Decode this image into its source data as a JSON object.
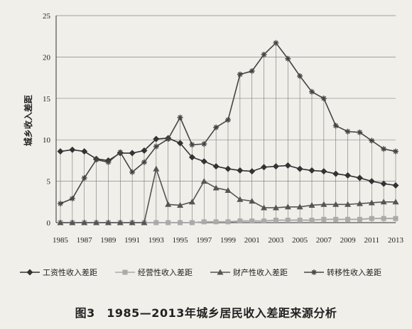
{
  "caption": "图3　1985—2013年城乡居民收入差距来源分析",
  "chart_data": {
    "type": "line",
    "title": "",
    "xlabel": "",
    "ylabel": "城乡收入差距",
    "ylim": [
      0,
      25
    ],
    "yticks": [
      0,
      5,
      10,
      15,
      20,
      25
    ],
    "grid": "vertical-drop-lines",
    "legend_position": "bottom",
    "x": [
      1985,
      1986,
      1987,
      1988,
      1989,
      1990,
      1991,
      1992,
      1993,
      1994,
      1995,
      1996,
      1997,
      1998,
      1999,
      2000,
      2001,
      2002,
      2003,
      2004,
      2005,
      2006,
      2007,
      2008,
      2009,
      2010,
      2011,
      2012,
      2013
    ],
    "x_tick_labels": [
      "1985",
      "1987",
      "1989",
      "1991",
      "1993",
      "1995",
      "1997",
      "1999",
      "2001",
      "2003",
      "2005",
      "2007",
      "2009",
      "2011",
      "2013"
    ],
    "series": [
      {
        "name": "工资性收入差距",
        "color": "#333333",
        "marker": "diamond",
        "values": [
          8.6,
          8.8,
          8.6,
          7.7,
          7.5,
          8.4,
          8.4,
          8.7,
          10.1,
          10.2,
          9.6,
          7.9,
          7.4,
          6.8,
          6.5,
          6.3,
          6.2,
          6.7,
          6.8,
          6.9,
          6.5,
          6.3,
          6.2,
          5.9,
          5.7,
          5.4,
          5.0,
          4.7,
          4.5
        ]
      },
      {
        "name": "经营性收入差距",
        "color": "#aaaaaa",
        "marker": "square",
        "values": [
          0,
          0,
          0,
          0,
          0,
          0,
          0,
          0,
          0,
          0,
          0,
          0,
          0.1,
          0.1,
          0.1,
          0.2,
          0.2,
          0.2,
          0.3,
          0.3,
          0.3,
          0.3,
          0.4,
          0.4,
          0.4,
          0.4,
          0.5,
          0.5,
          0.5
        ]
      },
      {
        "name": "财产性收入差距",
        "color": "#555555",
        "marker": "triangle",
        "values": [
          0,
          0,
          0,
          0,
          0,
          0,
          0,
          0,
          6.5,
          2.2,
          2.1,
          2.5,
          5.0,
          4.2,
          3.9,
          2.8,
          2.6,
          1.8,
          1.8,
          1.9,
          1.9,
          2.1,
          2.2,
          2.2,
          2.2,
          2.3,
          2.4,
          2.5,
          2.5
        ]
      },
      {
        "name": "转移性收入差距",
        "color": "#444444",
        "marker": "star",
        "values": [
          2.3,
          2.9,
          5.4,
          7.6,
          7.3,
          8.5,
          6.1,
          7.3,
          9.2,
          10.1,
          12.7,
          9.4,
          9.5,
          11.5,
          12.4,
          17.9,
          18.3,
          20.3,
          21.7,
          19.8,
          17.7,
          15.8,
          15.0,
          11.7,
          11.0,
          10.9,
          9.9,
          8.9,
          8.6
        ]
      }
    ]
  }
}
